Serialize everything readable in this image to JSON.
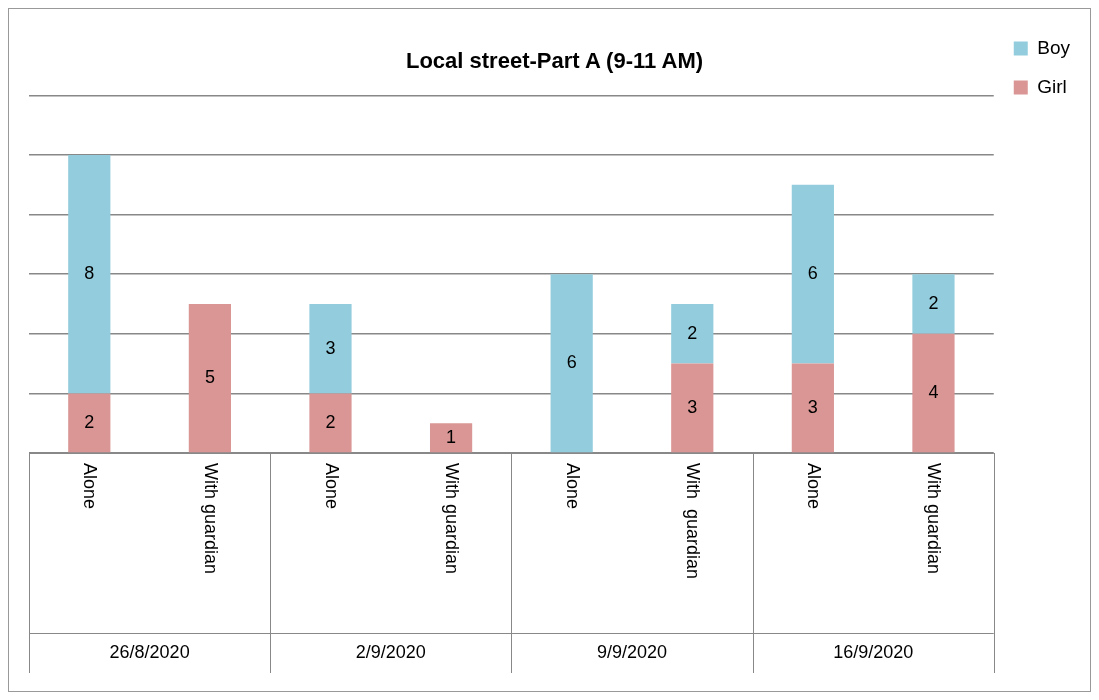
{
  "chart_data": {
    "type": "bar",
    "stacked": true,
    "title": "Local street-Part A (9-11 AM)",
    "categories": [
      "Alone",
      "With guardian",
      "Alone",
      "With guardian",
      "Alone",
      "With  guardian",
      "Alone",
      "With guardian"
    ],
    "series": [
      {
        "name": "Girl",
        "color": "#d99694",
        "values": [
          2,
          5,
          2,
          1,
          null,
          3,
          3,
          4
        ]
      },
      {
        "name": "Boy",
        "color": "#93cddd",
        "values": [
          8,
          null,
          3,
          null,
          6,
          2,
          6,
          2
        ]
      }
    ],
    "annotations": [
      "26/8/2020",
      "2/9/2020",
      "9/9/2020",
      "16/9/2020"
    ],
    "tick_labels": "x",
    "grid": "y",
    "legend": "right",
    "data_labels": true
  }
}
